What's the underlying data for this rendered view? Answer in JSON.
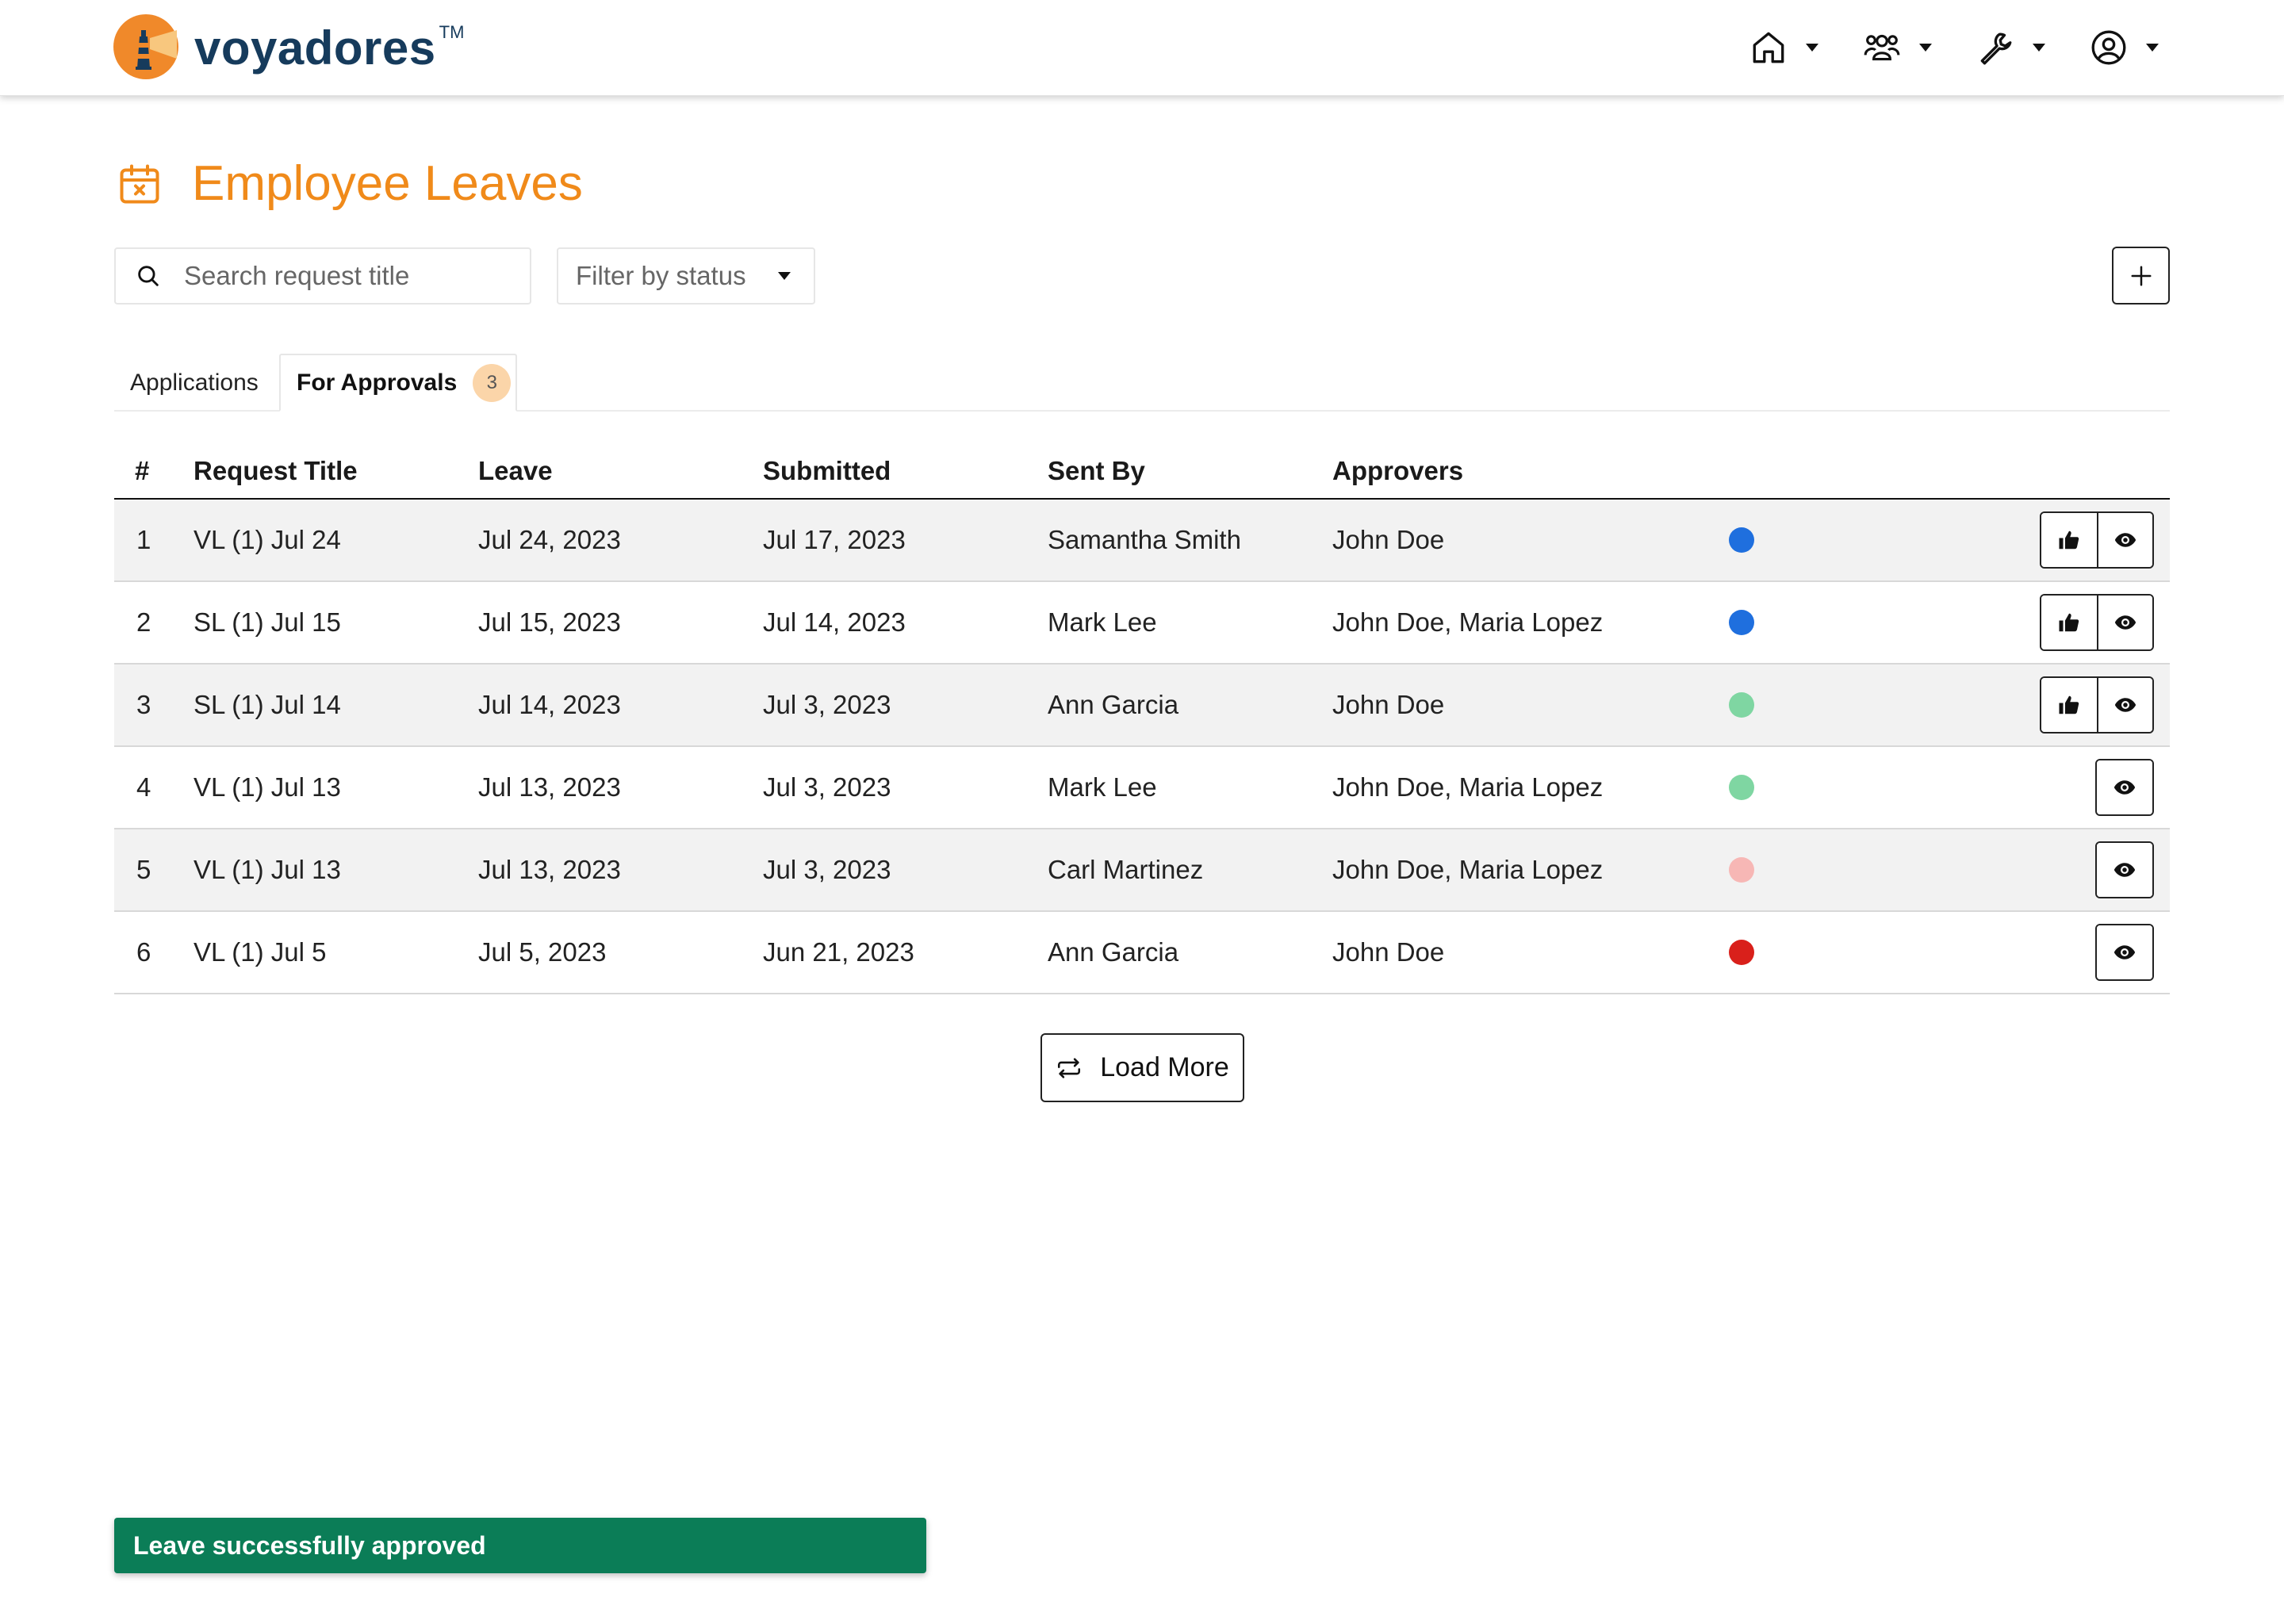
{
  "brand": {
    "name": "voyadores",
    "tm": "TM",
    "logo_icon": "lighthouse-icon"
  },
  "nav": [
    {
      "name": "home-menu",
      "icon": "home-icon"
    },
    {
      "name": "people-menu",
      "icon": "people-icon"
    },
    {
      "name": "tools-menu",
      "icon": "wrench-icon"
    },
    {
      "name": "account-menu",
      "icon": "user-circle-icon"
    }
  ],
  "page": {
    "title": "Employee Leaves",
    "icon": "calendar-x-icon"
  },
  "toolbar": {
    "search_placeholder": "Search request title",
    "filter_label": "Filter by status",
    "add_icon": "plus-icon"
  },
  "tabs": [
    {
      "label": "Applications",
      "active": false
    },
    {
      "label": "For Approvals",
      "active": true,
      "badge": "3"
    }
  ],
  "table": {
    "headers": {
      "num": "#",
      "title": "Request Title",
      "leave": "Leave",
      "submitted": "Submitted",
      "sent_by": "Sent By",
      "approvers": "Approvers"
    },
    "rows": [
      {
        "num": "1",
        "title": "VL (1) Jul 24",
        "leave": "Jul 24, 2023",
        "submitted": "Jul 17, 2023",
        "sent_by": "Samantha Smith",
        "approvers": "John Doe",
        "status_color": "#1f6fde",
        "can_approve": true
      },
      {
        "num": "2",
        "title": "SL (1) Jul 15",
        "leave": "Jul 15, 2023",
        "submitted": "Jul 14, 2023",
        "sent_by": "Mark Lee",
        "approvers": "John Doe, Maria Lopez",
        "status_color": "#1f6fde",
        "can_approve": true
      },
      {
        "num": "3",
        "title": "SL (1) Jul 14",
        "leave": "Jul 14, 2023",
        "submitted": "Jul 3, 2023",
        "sent_by": "Ann Garcia",
        "approvers": "John Doe",
        "status_color": "#7fd6a2",
        "can_approve": true
      },
      {
        "num": "4",
        "title": "VL (1) Jul 13",
        "leave": "Jul 13, 2023",
        "submitted": "Jul 3, 2023",
        "sent_by": "Mark Lee",
        "approvers": "John Doe, Maria Lopez",
        "status_color": "#7fd6a2",
        "can_approve": false
      },
      {
        "num": "5",
        "title": "VL (1) Jul 13",
        "leave": "Jul 13, 2023",
        "submitted": "Jul 3, 2023",
        "sent_by": "Carl Martinez",
        "approvers": "John Doe, Maria Lopez",
        "status_color": "#f7b7b5",
        "can_approve": false
      },
      {
        "num": "6",
        "title": "VL (1) Jul 5",
        "leave": "Jul 5, 2023",
        "submitted": "Jun 21, 2023",
        "sent_by": "Ann Garcia",
        "approvers": "John Doe",
        "status_color": "#d9201b",
        "can_approve": false
      }
    ]
  },
  "load_more": {
    "label": "Load More",
    "icon": "repeat-icon"
  },
  "toast": {
    "message": "Leave successfully approved",
    "color": "#0b7d57"
  }
}
